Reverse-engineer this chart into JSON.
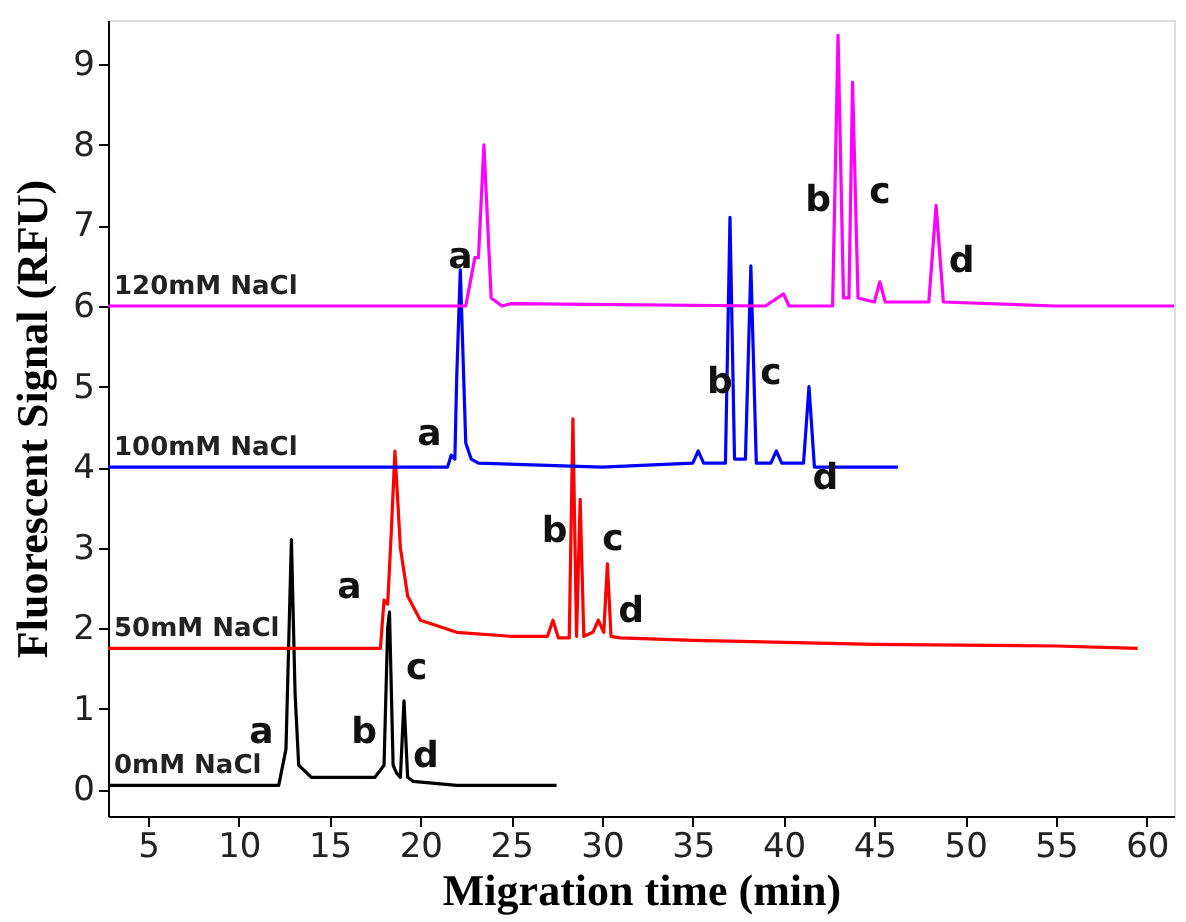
{
  "chart_data": {
    "type": "line",
    "xlabel": "Migration time (min)",
    "ylabel": "Fluorescent Signal (RFU)",
    "xlim": [
      2.8,
      61.5
    ],
    "ylim": [
      -0.33,
      9.55
    ],
    "xticks": [
      5,
      10,
      15,
      20,
      25,
      30,
      35,
      40,
      45,
      50,
      55,
      60
    ],
    "yticks": [
      0,
      1,
      2,
      3,
      4,
      5,
      6,
      7,
      8,
      9
    ],
    "grid": false,
    "legend": false,
    "marker": "none",
    "line_style": "solid",
    "series": [
      {
        "name": "0mM NaCl",
        "color": "#000000",
        "x": [
          2.8,
          12.2,
          12.6,
          12.9,
          13.1,
          13.3,
          14,
          17.5,
          18.0,
          18.2,
          18.3,
          18.5,
          18.7,
          18.9,
          19.1,
          19.3,
          19.6,
          22,
          25,
          27.5
        ],
        "values": [
          0.05,
          0.05,
          0.5,
          3.1,
          1.2,
          0.3,
          0.15,
          0.15,
          0.3,
          2.0,
          2.2,
          0.3,
          0.2,
          0.15,
          1.1,
          0.15,
          0.1,
          0.05,
          0.05,
          0.05
        ]
      },
      {
        "name": "50mM NaCl",
        "color": "#ff0000",
        "x": [
          2.8,
          17.8,
          18.0,
          18.2,
          18.4,
          18.6,
          18.9,
          19.3,
          20,
          22,
          25,
          27,
          27.3,
          27.6,
          28.2,
          28.4,
          28.6,
          28.8,
          29.0,
          29.5,
          29.8,
          30.1,
          30.3,
          30.5,
          31,
          35,
          45,
          55,
          59.5
        ],
        "values": [
          1.75,
          1.75,
          2.35,
          2.3,
          3.2,
          4.2,
          3.0,
          2.4,
          2.1,
          1.95,
          1.9,
          1.9,
          2.1,
          1.88,
          1.88,
          4.6,
          1.9,
          3.6,
          1.9,
          1.95,
          2.1,
          1.95,
          2.8,
          1.9,
          1.88,
          1.85,
          1.8,
          1.78,
          1.75
        ]
      },
      {
        "name": "100mM NaCl",
        "color": "#0000ff",
        "x": [
          2.8,
          21.5,
          21.7,
          21.9,
          22.0,
          22.2,
          22.5,
          22.8,
          23.2,
          30,
          35,
          35.3,
          35.6,
          36.8,
          37.05,
          37.3,
          37.9,
          38.2,
          38.5,
          39.3,
          39.6,
          39.9,
          41.1,
          41.4,
          41.7,
          43,
          46.3
        ],
        "values": [
          4.0,
          4.0,
          4.15,
          4.1,
          5.1,
          6.45,
          4.3,
          4.1,
          4.05,
          4.0,
          4.05,
          4.2,
          4.05,
          4.05,
          7.1,
          4.1,
          4.1,
          6.5,
          4.05,
          4.05,
          4.2,
          4.05,
          4.05,
          5.0,
          4.0,
          4.0,
          4.0
        ]
      },
      {
        "name": "120mM NaCl",
        "color": "#ff00ff",
        "x": [
          2.8,
          22.5,
          23.0,
          23.2,
          23.5,
          23.9,
          24.5,
          25,
          39,
          40.0,
          40.3,
          42.7,
          43.0,
          43.3,
          43.6,
          43.8,
          44.1,
          45.0,
          45.3,
          45.6,
          48.0,
          48.4,
          48.8,
          55,
          61.5
        ],
        "values": [
          6.0,
          6.0,
          6.6,
          6.6,
          8.0,
          6.1,
          6.0,
          6.03,
          6.0,
          6.15,
          6.0,
          6.0,
          9.36,
          6.1,
          6.1,
          8.78,
          6.1,
          6.05,
          6.3,
          6.05,
          6.05,
          7.25,
          6.05,
          6.0,
          6.0
        ]
      }
    ],
    "annotations": [
      "a",
      "b",
      "c",
      "d",
      "a",
      "b",
      "c",
      "d",
      "a",
      "b",
      "c",
      "d",
      "a",
      "b",
      "c",
      "d"
    ]
  }
}
